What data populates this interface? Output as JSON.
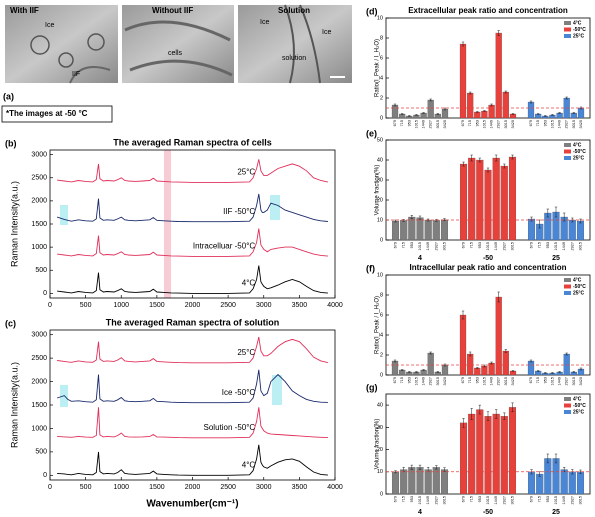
{
  "panel_a": {
    "label": "(a)",
    "images": [
      {
        "title": "With IIF",
        "labels": [
          "Ice",
          "IIF"
        ]
      },
      {
        "title": "Without IIF",
        "labels": [
          "cells"
        ]
      },
      {
        "title": "Solution",
        "labels": [
          "Ice",
          "Ice",
          "solution"
        ]
      }
    ],
    "note": "*The images at -50 °C"
  },
  "chart_data": [
    {
      "type": "line",
      "panel_label": "(b)",
      "title": "The averaged Raman spectra of cells",
      "y_label": "Raman Intensity(a.u.)",
      "x": [
        100,
        200,
        250,
        300,
        400,
        500,
        600,
        650,
        680,
        700,
        750,
        800,
        900,
        950,
        1000,
        1050,
        1100,
        1200,
        1300,
        1400,
        1450,
        1500,
        1600,
        1700,
        1800,
        2000,
        2500,
        2800,
        2850,
        2900,
        2930,
        2960,
        2980,
        3000,
        3050,
        3100,
        3200,
        3300,
        3400,
        3500,
        3600,
        3700,
        3800,
        3900
      ],
      "series": [
        {
          "name": "25°C",
          "color": "#e0305a",
          "values": [
            2450,
            2430,
            2420,
            2410,
            2440,
            2420,
            2410,
            2460,
            2800,
            2480,
            2430,
            2440,
            2430,
            2460,
            2500,
            2440,
            2430,
            2420,
            2430,
            2440,
            2490,
            2430,
            2420,
            2410,
            2405,
            2400,
            2400,
            2410,
            2500,
            2700,
            2900,
            2650,
            2600,
            2550,
            2550,
            2600,
            2700,
            2750,
            2800,
            2750,
            2650,
            2500,
            2440,
            2405
          ]
        },
        {
          "name": "IIF -50°C",
          "color": "#1a2a6c",
          "values": [
            1650,
            1600,
            1580,
            1560,
            1590,
            1570,
            1560,
            1610,
            2050,
            1630,
            1580,
            1590,
            1580,
            1610,
            1650,
            1590,
            1580,
            1570,
            1580,
            1590,
            1640,
            1580,
            1570,
            1560,
            1555,
            1550,
            1550,
            1560,
            1650,
            1900,
            2150,
            1800,
            1750,
            1750,
            1800,
            1950,
            1900,
            1800,
            1750,
            1700,
            1650,
            1600,
            1570,
            1555
          ]
        },
        {
          "name": "Intracelluar -50°C",
          "color": "#e0305a",
          "values": [
            850,
            830,
            820,
            810,
            840,
            820,
            810,
            860,
            1250,
            880,
            830,
            840,
            830,
            860,
            900,
            840,
            830,
            820,
            830,
            840,
            890,
            830,
            820,
            810,
            805,
            800,
            800,
            810,
            900,
            1100,
            1400,
            1050,
            1000,
            950,
            900,
            950,
            980,
            1000,
            1000,
            950,
            900,
            850,
            820,
            805
          ]
        },
        {
          "name": "4°C",
          "color": "#000000",
          "values": [
            50,
            30,
            20,
            10,
            40,
            20,
            10,
            60,
            450,
            80,
            30,
            40,
            30,
            60,
            100,
            40,
            30,
            20,
            30,
            40,
            90,
            30,
            20,
            10,
            5,
            0,
            0,
            10,
            100,
            300,
            600,
            250,
            200,
            150,
            100,
            120,
            180,
            250,
            300,
            250,
            150,
            60,
            20,
            5
          ]
        }
      ],
      "xlim": [
        0,
        4000
      ],
      "xticks": [
        0,
        500,
        1000,
        1500,
        2000,
        2500,
        3000,
        3500,
        4000
      ],
      "ylim": [
        -100,
        3100
      ],
      "yticks": [
        0,
        500,
        1000,
        1500,
        2000,
        2500,
        3000
      ]
    },
    {
      "type": "line",
      "panel_label": "(c)",
      "title": "The averaged Raman spectra of solution",
      "y_label": "Raman Intensity(a.u.)",
      "x_label": "Wavenumber(cm⁻¹)",
      "x": [
        100,
        200,
        250,
        300,
        400,
        500,
        600,
        650,
        680,
        700,
        750,
        800,
        900,
        950,
        1000,
        1050,
        1100,
        1200,
        1300,
        1400,
        1450,
        1500,
        1600,
        1700,
        1800,
        2000,
        2500,
        2800,
        2850,
        2900,
        2930,
        2960,
        2980,
        3000,
        3050,
        3100,
        3200,
        3300,
        3400,
        3500,
        3600,
        3700,
        3800,
        3900
      ],
      "series": [
        {
          "name": "25°C",
          "color": "#e0305a",
          "values": [
            2450,
            2430,
            2420,
            2410,
            2440,
            2420,
            2410,
            2460,
            2850,
            2480,
            2430,
            2440,
            2430,
            2460,
            2510,
            2440,
            2430,
            2420,
            2430,
            2440,
            2490,
            2430,
            2420,
            2410,
            2405,
            2400,
            2400,
            2410,
            2500,
            2750,
            2950,
            2650,
            2600,
            2550,
            2550,
            2600,
            2750,
            2850,
            2900,
            2850,
            2700,
            2520,
            2440,
            2405
          ]
        },
        {
          "name": "Ice -50°C",
          "color": "#1a2a6c",
          "values": [
            1650,
            1700,
            1620,
            1580,
            1590,
            1570,
            1560,
            1610,
            2150,
            1630,
            1580,
            1590,
            1580,
            1610,
            1660,
            1590,
            1580,
            1570,
            1580,
            1590,
            1640,
            1580,
            1570,
            1560,
            1555,
            1550,
            1550,
            1560,
            1650,
            1950,
            2250,
            1800,
            1750,
            1700,
            1750,
            2000,
            2150,
            2000,
            1800,
            1700,
            1620,
            1580,
            1560,
            1555
          ]
        },
        {
          "name": "Solution -50°C",
          "color": "#e0305a",
          "values": [
            830,
            820,
            815,
            810,
            830,
            815,
            810,
            850,
            1450,
            860,
            820,
            830,
            820,
            850,
            900,
            830,
            820,
            815,
            820,
            830,
            870,
            820,
            815,
            810,
            805,
            800,
            800,
            810,
            900,
            1150,
            1450,
            1050,
            1000,
            950,
            900,
            880,
            870,
            860,
            850,
            840,
            830,
            820,
            810,
            805
          ]
        },
        {
          "name": "4°C",
          "color": "#000000",
          "values": [
            40,
            30,
            20,
            10,
            40,
            20,
            10,
            60,
            500,
            80,
            30,
            40,
            30,
            60,
            120,
            40,
            30,
            20,
            30,
            40,
            90,
            30,
            20,
            10,
            5,
            0,
            0,
            10,
            100,
            350,
            650,
            280,
            220,
            180,
            150,
            200,
            280,
            330,
            350,
            300,
            180,
            70,
            20,
            5
          ]
        }
      ],
      "xlim": [
        0,
        4000
      ],
      "xticks": [
        0,
        500,
        1000,
        1500,
        2000,
        2500,
        3000,
        3500,
        4000
      ],
      "ylim": [
        -100,
        3100
      ],
      "yticks": [
        0,
        500,
        1000,
        1500,
        2000,
        2500,
        3000
      ]
    },
    {
      "type": "grouped_bar",
      "panel_label": "(d)",
      "title": "Extracellular peak ratio and concentration",
      "y_label": "Ratio(I_Peak / I_H₂O)",
      "categories": [
        "679",
        "715",
        "953",
        "1015",
        "1449",
        "2927",
        "3015",
        "3420"
      ],
      "series": [
        {
          "name": "4°C",
          "color": "#7f7f7f",
          "values": [
            1.3,
            0.4,
            0.2,
            0.3,
            0.5,
            1.8,
            0.4,
            0.9
          ],
          "errors": [
            0.1,
            0.05,
            0.05,
            0.05,
            0.05,
            0.1,
            0.05,
            0.1
          ]
        },
        {
          "name": "-50°C",
          "color": "#e8413c",
          "values": [
            7.4,
            2.5,
            0.6,
            0.7,
            1.3,
            8.5,
            2.6,
            0.4
          ],
          "errors": [
            0.2,
            0.1,
            0.05,
            0.05,
            0.1,
            0.25,
            0.1,
            0.05
          ]
        },
        {
          "name": "25°C",
          "color": "#4a86d6",
          "values": [
            1.6,
            0.4,
            0.2,
            0.3,
            0.5,
            2.0,
            0.5,
            1.0
          ],
          "errors": [
            0.1,
            0.05,
            0.05,
            0.05,
            0.05,
            0.1,
            0.05,
            0.1
          ]
        }
      ],
      "ylim": [
        0,
        10
      ],
      "yticks": [
        0,
        2,
        4,
        6,
        8,
        10
      ],
      "reference_line": 1,
      "legend": "upper right"
    },
    {
      "type": "grouped_bar",
      "panel_label": "(e)",
      "y_label": "Volume fraction(%)",
      "categories": [
        "679",
        "715",
        "953",
        "1015",
        "1449",
        "2927",
        "3015"
      ],
      "group_labels": [
        "4",
        "-50",
        "25"
      ],
      "series": [
        {
          "name": "4°C",
          "color": "#7f7f7f",
          "values": [
            9.5,
            9.8,
            11.5,
            11.2,
            10,
            9.8,
            10.2
          ],
          "errors": [
            0.5,
            0.5,
            0.8,
            0.8,
            0.5,
            0.5,
            0.5
          ]
        },
        {
          "name": "-50°C",
          "color": "#e8413c",
          "values": [
            38,
            41,
            40,
            35,
            41,
            37,
            41.5
          ],
          "errors": [
            1,
            1.5,
            1,
            1,
            1.5,
            1,
            1
          ]
        },
        {
          "name": "25°C",
          "color": "#4a86d6",
          "values": [
            10.5,
            8,
            13.5,
            14,
            11.5,
            10,
            9.5
          ],
          "errors": [
            1,
            2,
            2,
            2.5,
            2,
            1,
            1
          ]
        }
      ],
      "ylim": [
        0,
        50
      ],
      "yticks": [
        0,
        10,
        20,
        30,
        40,
        50
      ],
      "reference_line": 10,
      "legend": "upper right"
    },
    {
      "type": "grouped_bar",
      "panel_label": "(f)",
      "title": "Intracellular peak ratio and concentration",
      "y_label": "Ratio(I_Peak / I_H₂O)",
      "categories": [
        "679",
        "715",
        "953",
        "1015",
        "1449",
        "2927",
        "3015",
        "3420"
      ],
      "series": [
        {
          "name": "4°C",
          "color": "#7f7f7f",
          "values": [
            1.4,
            0.5,
            0.3,
            0.3,
            0.5,
            2.2,
            0.3,
            1.0
          ],
          "errors": [
            0.1,
            0.05,
            0.05,
            0.05,
            0.05,
            0.1,
            0.05,
            0.1
          ]
        },
        {
          "name": "-50°C",
          "color": "#e8413c",
          "values": [
            6.0,
            2.1,
            0.7,
            0.9,
            1.2,
            7.8,
            2.4,
            0.4
          ],
          "errors": [
            0.4,
            0.2,
            0.05,
            0.1,
            0.1,
            0.5,
            0.15,
            0.05
          ]
        },
        {
          "name": "25°C",
          "color": "#4a86d6",
          "values": [
            1.4,
            0.4,
            0.2,
            0.2,
            0.3,
            2.1,
            0.3,
            0.6
          ],
          "errors": [
            0.1,
            0.05,
            0.05,
            0.05,
            0.05,
            0.1,
            0.05,
            0.1
          ]
        }
      ],
      "ylim": [
        0,
        10
      ],
      "yticks": [
        0,
        2,
        4,
        6,
        8,
        10
      ],
      "reference_line": 1,
      "legend": "upper right"
    },
    {
      "type": "grouped_bar",
      "panel_label": "(g)",
      "y_label": "Volume fraction(%)",
      "categories": [
        "679",
        "715",
        "953",
        "1015",
        "1449",
        "2927",
        "3015"
      ],
      "group_labels": [
        "4",
        "-50",
        "25"
      ],
      "series": [
        {
          "name": "4°C",
          "color": "#7f7f7f",
          "values": [
            10,
            11,
            12,
            12,
            11,
            12,
            11
          ],
          "errors": [
            0.5,
            1,
            1,
            1,
            1,
            0.8,
            0.8
          ]
        },
        {
          "name": "-50°C",
          "color": "#e8413c",
          "values": [
            32,
            36,
            38,
            35,
            36,
            35,
            39
          ],
          "errors": [
            2,
            2.5,
            2,
            2,
            2,
            1.5,
            2
          ]
        },
        {
          "name": "25°C",
          "color": "#4a86d6",
          "values": [
            10,
            9,
            16,
            16,
            11,
            10,
            10
          ],
          "errors": [
            1,
            1,
            2,
            2,
            1,
            1,
            0.8
          ]
        }
      ],
      "ylim": [
        0,
        45
      ],
      "yticks": [
        0,
        10,
        20,
        30,
        40
      ],
      "reference_line": 10,
      "legend": "upper right"
    }
  ]
}
